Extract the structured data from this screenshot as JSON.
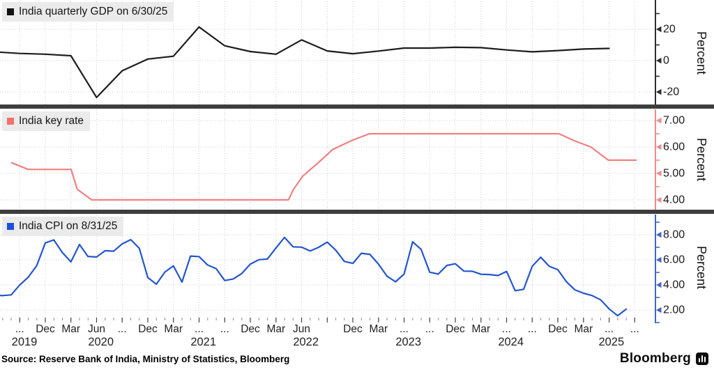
{
  "chart_data": [
    {
      "type": "line",
      "title": "India quarterly GDP on 6/30/25",
      "ylabel": "Percent",
      "line_color": "#1c1c1c",
      "axis_color": "#2e2e2e",
      "swatch_color": "#111111",
      "yticks": [
        20,
        0,
        -20
      ],
      "ytick_labels": [
        "20",
        "0",
        "-20"
      ],
      "minor_yticks": [
        30,
        10,
        -10
      ],
      "ylim": [
        -28,
        37.8
      ],
      "x_start": 2019.458,
      "x_step_years": 0.25,
      "values": [
        5.6,
        4.6,
        4.1,
        3.1,
        -23.5,
        -6.5,
        1.0,
        2.8,
        21.5,
        9.5,
        5.8,
        4.1,
        13.2,
        6.2,
        4.4,
        6.1,
        8.0,
        8.0,
        8.5,
        8.3,
        6.8,
        5.6,
        6.4,
        7.4,
        7.8
      ]
    },
    {
      "type": "line",
      "title": "India key rate",
      "ylabel": "Percent",
      "line_color": "#f08080",
      "axis_color": "#ec8c8a",
      "swatch_color": "#f4716e",
      "yticks": [
        7,
        6,
        5,
        4
      ],
      "ytick_labels": [
        "7.00",
        "6.00",
        "5.00",
        "4.00"
      ],
      "minor_yticks": [
        6.5,
        5.5,
        4.5
      ],
      "ylim": [
        3.63,
        7.42
      ],
      "points": [
        [
          2019.63,
          5.4
        ],
        [
          2019.79,
          5.15
        ],
        [
          2020.21,
          5.15
        ],
        [
          2020.27,
          4.4
        ],
        [
          2020.41,
          4.0
        ],
        [
          2022.33,
          4.0
        ],
        [
          2022.38,
          4.4
        ],
        [
          2022.47,
          4.9
        ],
        [
          2022.62,
          5.4
        ],
        [
          2022.76,
          5.9
        ],
        [
          2022.95,
          6.25
        ],
        [
          2023.12,
          6.5
        ],
        [
          2024.97,
          6.5
        ],
        [
          2025.11,
          6.25
        ],
        [
          2025.28,
          6.0
        ],
        [
          2025.45,
          5.5
        ],
        [
          2025.72,
          5.5
        ]
      ]
    },
    {
      "type": "line",
      "title": "India CPI on 8/31/25",
      "ylabel": "Percent",
      "line_color": "#2355cd",
      "axis_color": "#4066c5",
      "swatch_color": "#1b50d8",
      "yticks": [
        8,
        6,
        4,
        2
      ],
      "ytick_labels": [
        "8.00",
        "6.00",
        "4.00",
        "2.00"
      ],
      "minor_yticks": [
        9,
        7,
        5,
        3,
        1
      ],
      "ylim": [
        1.17,
        9.61
      ],
      "x_start": 2019.458,
      "x_step_years": 0.0833333,
      "values": [
        3.18,
        3.15,
        3.21,
        3.99,
        4.62,
        5.54,
        7.35,
        7.59,
        6.58,
        5.84,
        7.22,
        6.27,
        6.23,
        6.73,
        6.69,
        7.27,
        7.61,
        6.93,
        4.59,
        4.06,
        5.03,
        5.52,
        4.23,
        6.3,
        6.26,
        5.59,
        5.3,
        4.35,
        4.48,
        4.91,
        5.66,
        6.01,
        6.07,
        6.95,
        7.79,
        7.04,
        7.01,
        6.71,
        7.0,
        7.41,
        6.77,
        5.88,
        5.72,
        6.52,
        6.44,
        5.66,
        4.7,
        4.25,
        4.87,
        7.44,
        6.83,
        5.02,
        4.87,
        5.55,
        5.69,
        5.1,
        5.09,
        4.85,
        4.83,
        4.75,
        5.08,
        3.54,
        3.65,
        5.49,
        6.21,
        5.48,
        5.22,
        4.26,
        3.61,
        3.34,
        3.16,
        2.82,
        2.1,
        1.55,
        2.07
      ]
    }
  ],
  "xaxis": {
    "range": [
      2019.516,
      2025.91
    ],
    "quarter_ticks": [
      {
        "t": 2019.708,
        "label": "..."
      },
      {
        "t": 2019.958,
        "label": "Dec"
      },
      {
        "t": 2020.208,
        "label": "Mar"
      },
      {
        "t": 2020.458,
        "label": "Jun"
      },
      {
        "t": 2020.708,
        "label": "..."
      },
      {
        "t": 2020.958,
        "label": "Dec"
      },
      {
        "t": 2021.208,
        "label": "Mar"
      },
      {
        "t": 2021.458,
        "label": "..."
      },
      {
        "t": 2021.708,
        "label": "..."
      },
      {
        "t": 2021.958,
        "label": "Dec"
      },
      {
        "t": 2022.208,
        "label": "Mar"
      },
      {
        "t": 2022.458,
        "label": "Jun"
      },
      {
        "t": 2022.708,
        "label": ""
      },
      {
        "t": 2022.958,
        "label": "Dec"
      },
      {
        "t": 2023.208,
        "label": "Mar"
      },
      {
        "t": 2023.458,
        "label": "..."
      },
      {
        "t": 2023.708,
        "label": "..."
      },
      {
        "t": 2023.958,
        "label": "Dec"
      },
      {
        "t": 2024.208,
        "label": "Mar"
      },
      {
        "t": 2024.458,
        "label": "..."
      },
      {
        "t": 2024.708,
        "label": "..."
      },
      {
        "t": 2024.958,
        "label": "Dec"
      },
      {
        "t": 2025.208,
        "label": "Mar"
      },
      {
        "t": 2025.458,
        "label": "..."
      },
      {
        "t": 2025.708,
        "label": "..."
      }
    ],
    "year_labels": [
      {
        "year": "2019",
        "t_center": 2019.754
      },
      {
        "year": "2020",
        "t_center": 2020.5
      },
      {
        "year": "2021",
        "t_center": 2021.5
      },
      {
        "year": "2022",
        "t_center": 2022.5
      },
      {
        "year": "2023",
        "t_center": 2023.5
      },
      {
        "year": "2024",
        "t_center": 2024.5
      },
      {
        "year": "2025",
        "t_center": 2025.48
      }
    ]
  },
  "footer": {
    "source": "Source: Reserve Bank of India, Ministry of Statistics, Bloomberg",
    "brand": "Bloomberg"
  },
  "style": {
    "background": "#ffffff",
    "grid_color": "#c9c9c9",
    "divider_color": "#3d3d3d",
    "legend_bg": "#ebebeb",
    "label_color": "#1a1a1a",
    "xlabel_color": "#222222"
  }
}
